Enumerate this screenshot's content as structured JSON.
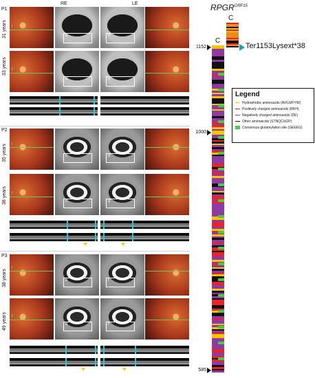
{
  "eyes": {
    "re": "RE",
    "le": "LE"
  },
  "patients": {
    "p1": {
      "label": "P1",
      "age1": "31 years",
      "age2": "33 years"
    },
    "p2": {
      "label": "P2",
      "age1": "35 years",
      "age2": "38 years"
    },
    "p3": {
      "label": "P3",
      "age1": "38 years",
      "age2": "49 years"
    }
  },
  "panel_labels": {
    "p1_r1": [
      "a",
      "b"
    ],
    "p1_r2": [
      "a'",
      "b'"
    ],
    "p2_r1": [
      "c",
      "d"
    ],
    "p2_r2": [
      "c'",
      "d'"
    ],
    "p3_r1": [
      "e",
      "f"
    ],
    "p3_r2": [
      "e'",
      "f'"
    ]
  },
  "gene": {
    "name": "RPGR",
    "superscript": "ORF15",
    "c_terminal": "C"
  },
  "markers": {
    "top": "1152",
    "mid": "1000",
    "bottom": "585"
  },
  "mutation": "Ter1153Lysext*38",
  "legend": {
    "title": "Legend",
    "items": [
      {
        "label": "Hydrophobic aminoacids (AVILMFYW)",
        "color": "#f5c400"
      },
      {
        "label": "Positively charged aminoacids (RKH)",
        "color": "#e8232a"
      },
      {
        "label": "Negatively charged aminoacids (DE)",
        "color": "#8e3aa0"
      },
      {
        "label": "Other aminoacids (STNQCUGP)",
        "color": "#111111"
      },
      {
        "label": "Consensus glutamylation site (GEEEG)",
        "color": "#3fcf3f"
      }
    ]
  },
  "colors": {
    "scan_line": "#5ed05a",
    "segmentation": "#29c7d6",
    "arrowhead": "#f3d11a",
    "mutation_arrow": "#1aa3ad"
  }
}
